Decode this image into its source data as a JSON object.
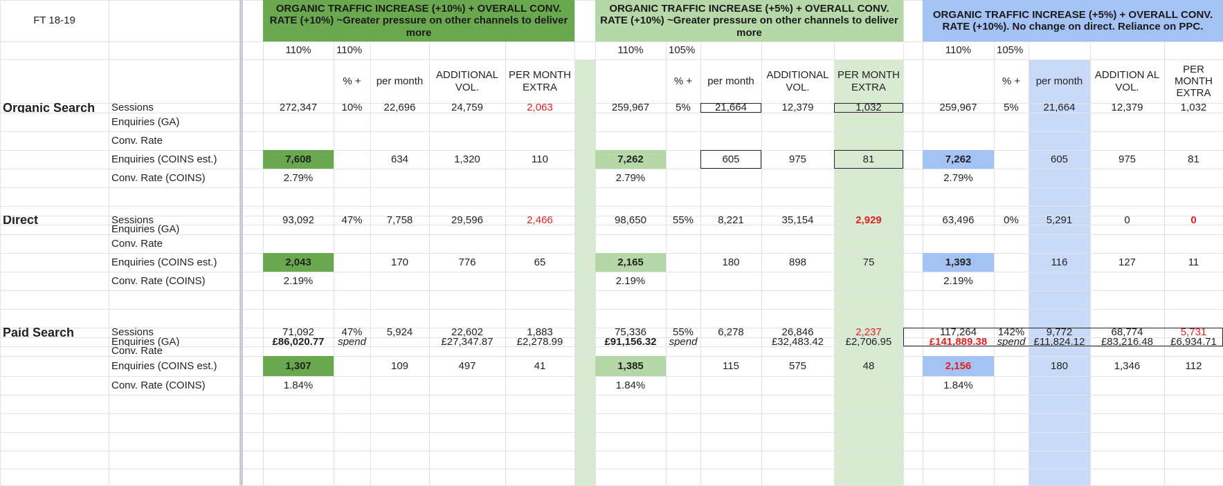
{
  "sheet": {
    "corner_label": "FT 18-19",
    "colors": {
      "green_dark": "#6aa84f",
      "green_light": "#b6d7a8",
      "blue": "#a4c2f4",
      "green_col": "#d9ead3",
      "blue_col": "#c9daf8",
      "red": "#e02020"
    },
    "scenarios": [
      {
        "title": "ORGANIC TRAFFIC INCREASE (+10%) + OVERALL CONV. RATE (+10%) ~Greater pressure on other channels to deliver more",
        "pct_a": "110%",
        "pct_b": "110%",
        "col_pct": "% +",
        "col_per_month": "per month",
        "col_add_vol": "ADDITIONAL VOL.",
        "col_extra": "PER MONTH EXTRA",
        "organic": {
          "sessions": "272,347",
          "pct": "10%",
          "per_month": "22,696",
          "add_vol": "24,759",
          "extra": "2,063",
          "enq": "7,608",
          "enq_pm": "634",
          "enq_add": "1,320",
          "enq_extra": "110",
          "conv": "2.79%"
        },
        "direct": {
          "sessions": "93,092",
          "pct": "47%",
          "per_month": "7,758",
          "add_vol": "29,596",
          "extra": "2,466",
          "enq": "2,043",
          "enq_pm": "170",
          "enq_add": "776",
          "enq_extra": "65",
          "conv": "2.19%"
        },
        "paid": {
          "sessions": "71,092",
          "pct": "47%",
          "per_month": "5,924",
          "add_vol": "22,602",
          "extra": "1,883",
          "spend": "£86,020.77",
          "spend_label": "spend",
          "spend_pm": "",
          "spend_add": "£27,347.87",
          "spend_extra": "£2,278.99",
          "enq": "1,307",
          "enq_pm": "109",
          "enq_add": "497",
          "enq_extra": "41",
          "conv": "1.84%"
        }
      },
      {
        "title": "ORGANIC TRAFFIC INCREASE (+5%) + OVERALL CONV. RATE (+10%) ~Greater pressure on other channels to deliver more",
        "pct_a": "110%",
        "pct_b": "105%",
        "col_pct": "% +",
        "col_per_month": "per month",
        "col_add_vol": "ADDITIONAL VOL.",
        "col_extra": "PER MONTH EXTRA",
        "organic": {
          "sessions": "259,967",
          "pct": "5%",
          "per_month": "21,664",
          "add_vol": "12,379",
          "extra": "1,032",
          "enq": "7,262",
          "enq_pm": "605",
          "enq_add": "975",
          "enq_extra": "81",
          "conv": "2.79%"
        },
        "direct": {
          "sessions": "98,650",
          "pct": "55%",
          "per_month": "8,221",
          "add_vol": "35,154",
          "extra": "2,929",
          "enq": "2,165",
          "enq_pm": "180",
          "enq_add": "898",
          "enq_extra": "75",
          "conv": "2.19%"
        },
        "paid": {
          "sessions": "75,336",
          "pct": "55%",
          "per_month": "6,278",
          "add_vol": "26,846",
          "extra": "2,237",
          "spend": "£91,156.32",
          "spend_label": "spend",
          "spend_pm": "",
          "spend_add": "£32,483.42",
          "spend_extra": "£2,706.95",
          "enq": "1,385",
          "enq_pm": "115",
          "enq_add": "575",
          "enq_extra": "48",
          "conv": "1.84%"
        }
      },
      {
        "title": "ORGANIC TRAFFIC INCREASE (+5%) + OVERALL CONV. RATE (+10%). No change on direct. Reliance on PPC.",
        "pct_a": "110%",
        "pct_b": "105%",
        "col_pct": "% +",
        "col_per_month": "per month",
        "col_add_vol": "ADDITION AL VOL.",
        "col_extra": "PER MONTH EXTRA",
        "organic": {
          "sessions": "259,967",
          "pct": "5%",
          "per_month": "21,664",
          "add_vol": "12,379",
          "extra": "1,032",
          "enq": "7,262",
          "enq_pm": "605",
          "enq_add": "975",
          "enq_extra": "81",
          "conv": "2.79%"
        },
        "direct": {
          "sessions": "63,496",
          "pct": "0%",
          "per_month": "5,291",
          "add_vol": "0",
          "extra": "0",
          "enq": "1,393",
          "enq_pm": "116",
          "enq_add": "127",
          "enq_extra": "11",
          "conv": "2.19%"
        },
        "paid": {
          "sessions": "117,264",
          "pct": "142%",
          "per_month": "9,772",
          "add_vol": "68,774",
          "extra": "5,731",
          "spend": "£141,889.38",
          "spend_label": "spend",
          "spend_pm": "£11,824.12",
          "spend_add": "£83,216.48",
          "spend_extra": "£6,934.71",
          "enq": "2,156",
          "enq_pm": "180",
          "enq_add": "1,346",
          "enq_extra": "112",
          "conv": "1.84%"
        }
      }
    ],
    "channels": [
      {
        "name": "Organic Search",
        "rows": [
          "Sessions",
          "Enquiries (GA)",
          "Conv. Rate",
          "Enquiries (COINS est.)",
          "Conv. Rate (COINS)"
        ]
      },
      {
        "name": "Direct",
        "rows": [
          "Sessions",
          "Enquiries (GA)",
          "Conv. Rate",
          "Enquiries (COINS est.)",
          "Conv. Rate (COINS)"
        ]
      },
      {
        "name": "Paid Search",
        "rows": [
          "Sessions",
          "Enquiries (GA)",
          "Conv. Rate",
          "Enquiries (COINS est.)",
          "Conv. Rate (COINS)"
        ]
      }
    ]
  }
}
